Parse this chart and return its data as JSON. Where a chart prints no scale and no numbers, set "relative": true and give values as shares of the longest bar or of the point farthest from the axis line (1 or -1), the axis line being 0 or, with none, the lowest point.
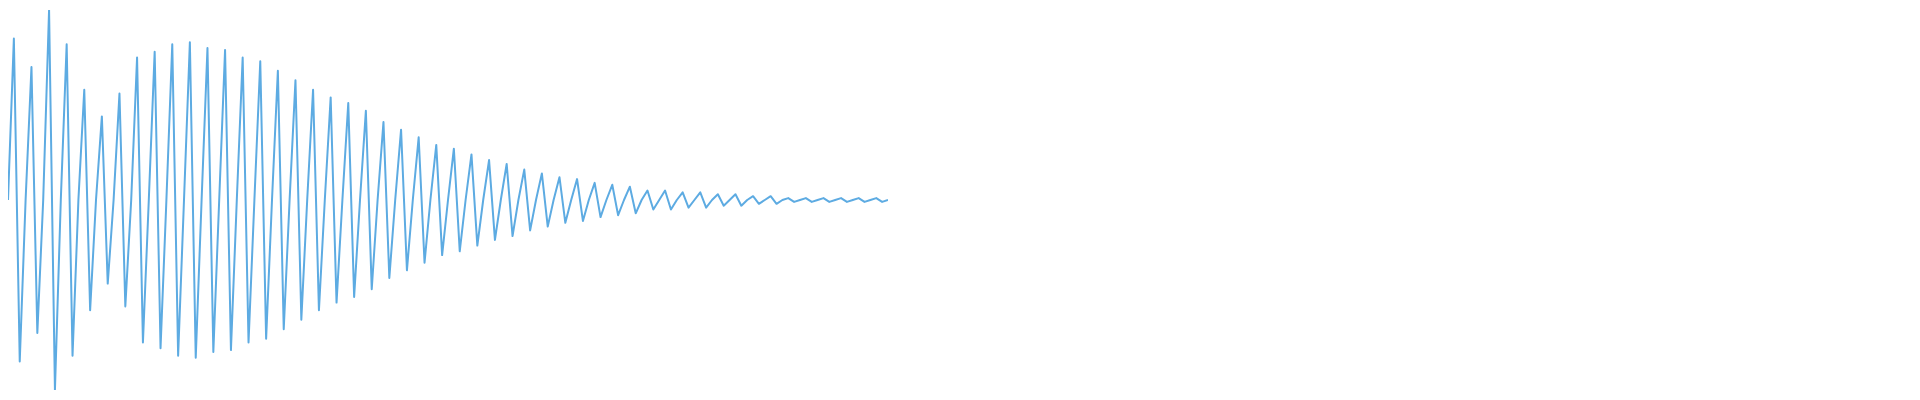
{
  "chart_data": {
    "type": "line",
    "relative": true,
    "categories": [
      null,
      null,
      null,
      null,
      null,
      null,
      null,
      null,
      null,
      null,
      null,
      null,
      null,
      null,
      null,
      null,
      null,
      null,
      null,
      null,
      null,
      null,
      null,
      null,
      null,
      null,
      null,
      null,
      null,
      null,
      null,
      null,
      null,
      null,
      null,
      null,
      null,
      null,
      null,
      null,
      null,
      null,
      null,
      null,
      null,
      null,
      null,
      null,
      null,
      null,
      null,
      null,
      null,
      null,
      null,
      null,
      null,
      null,
      null,
      null,
      null,
      null,
      null,
      null,
      null,
      null,
      null,
      null,
      null,
      null,
      null,
      null,
      null,
      null,
      null,
      null,
      null,
      null,
      null,
      null,
      null,
      null,
      null,
      null,
      null,
      null,
      null,
      null,
      null,
      null,
      null,
      null,
      null,
      null,
      null,
      null,
      null,
      null,
      null,
      null,
      null,
      null,
      null,
      null,
      null,
      null,
      null,
      null,
      null,
      null,
      null,
      null,
      null,
      null,
      null,
      null,
      null,
      null,
      null,
      null,
      null,
      null,
      null,
      null,
      null,
      null,
      null,
      null,
      null,
      null,
      null,
      null,
      null,
      null,
      null,
      null,
      null,
      null,
      null,
      null,
      null,
      null,
      null,
      null,
      null,
      null,
      null,
      null,
      null,
      null,
      null
    ],
    "series": [
      {
        "color": "#5dabe2",
        "values": [
          0.5,
          0.925,
          0.075,
          0.5,
          0.85,
          0.15,
          0.5,
          1,
          0,
          0.5,
          0.91,
          0.09,
          0.5,
          0.79,
          0.21,
          0.5,
          0.72,
          0.28,
          0.5,
          0.78,
          0.22,
          0.5,
          0.875,
          0.125,
          0.5,
          0.89,
          0.11,
          0.5,
          0.91,
          0.09,
          0.5,
          0.915,
          0.085,
          0.5,
          0.9,
          0.1,
          0.5,
          0.895,
          0.105,
          0.5,
          0.875,
          0.125,
          0.5,
          0.865,
          0.135,
          0.5,
          0.84,
          0.16,
          0.5,
          0.815,
          0.185,
          0.5,
          0.79,
          0.21,
          0.5,
          0.77,
          0.23,
          0.5,
          0.755,
          0.245,
          0.5,
          0.735,
          0.265,
          0.5,
          0.705,
          0.295,
          0.5,
          0.685,
          0.315,
          0.5,
          0.665,
          0.335,
          0.5,
          0.645,
          0.355,
          0.5,
          0.635,
          0.365,
          0.5,
          0.62,
          0.38,
          0.5,
          0.605,
          0.395,
          0.5,
          0.595,
          0.405,
          0.5,
          0.58,
          0.42,
          0.5,
          0.57,
          0.43,
          0.5,
          0.56,
          0.44,
          0.5,
          0.555,
          0.445,
          0.5,
          0.545,
          0.455,
          0.5,
          0.54,
          0.46,
          0.5,
          0.535,
          0.465,
          0.5,
          0.525,
          0.475,
          0.5,
          0.525,
          0.475,
          0.5,
          0.52,
          0.48,
          0.5,
          0.52,
          0.48,
          0.5,
          0.515,
          0.485,
          0.5,
          0.515,
          0.485,
          0.5,
          0.51,
          0.49,
          0.5,
          0.51,
          0.49,
          0.5,
          0.505,
          0.495,
          0.5,
          0.505,
          0.495,
          0.5,
          0.505,
          0.495,
          0.5,
          0.505,
          0.495,
          0.5,
          0.505,
          0.495,
          0.5,
          0.505,
          0.495,
          0.5
        ]
      }
    ]
  }
}
